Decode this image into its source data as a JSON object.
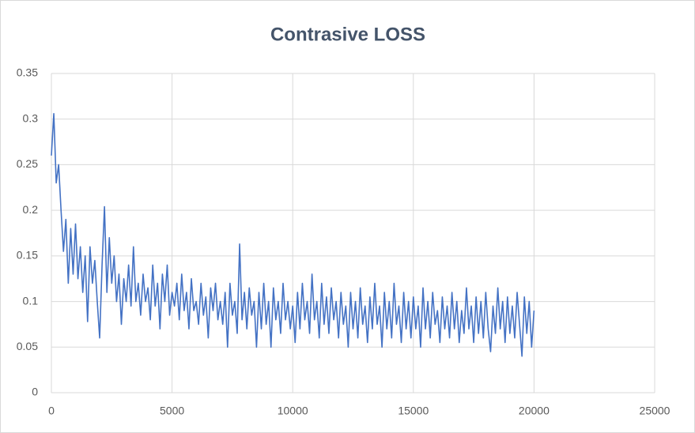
{
  "chart_data": {
    "type": "line",
    "title": "Contrasive LOSS",
    "x": [
      0,
      100,
      200,
      300,
      400,
      500,
      600,
      700,
      800,
      900,
      1000,
      1100,
      1200,
      1300,
      1400,
      1500,
      1600,
      1700,
      1800,
      1900,
      2000,
      2100,
      2200,
      2300,
      2400,
      2500,
      2600,
      2700,
      2800,
      2900,
      3000,
      3100,
      3200,
      3300,
      3400,
      3500,
      3600,
      3700,
      3800,
      3900,
      4000,
      4100,
      4200,
      4300,
      4400,
      4500,
      4600,
      4700,
      4800,
      4900,
      5000,
      5100,
      5200,
      5300,
      5400,
      5500,
      5600,
      5700,
      5800,
      5900,
      6000,
      6100,
      6200,
      6300,
      6400,
      6500,
      6600,
      6700,
      6800,
      6900,
      7000,
      7100,
      7200,
      7300,
      7400,
      7500,
      7600,
      7700,
      7800,
      7900,
      8000,
      8100,
      8200,
      8300,
      8400,
      8500,
      8600,
      8700,
      8800,
      8900,
      9000,
      9100,
      9200,
      9300,
      9400,
      9500,
      9600,
      9700,
      9800,
      9900,
      10000,
      10100,
      10200,
      10300,
      10400,
      10500,
      10600,
      10700,
      10800,
      10900,
      11000,
      11100,
      11200,
      11300,
      11400,
      11500,
      11600,
      11700,
      11800,
      11900,
      12000,
      12100,
      12200,
      12300,
      12400,
      12500,
      12600,
      12700,
      12800,
      12900,
      13000,
      13100,
      13200,
      13300,
      13400,
      13500,
      13600,
      13700,
      13800,
      13900,
      14000,
      14100,
      14200,
      14300,
      14400,
      14500,
      14600,
      14700,
      14800,
      14900,
      15000,
      15100,
      15200,
      15300,
      15400,
      15500,
      15600,
      15700,
      15800,
      15900,
      16000,
      16100,
      16200,
      16300,
      16400,
      16500,
      16600,
      16700,
      16800,
      16900,
      17000,
      17100,
      17200,
      17300,
      17400,
      17500,
      17600,
      17700,
      17800,
      17900,
      18000,
      18100,
      18200,
      18300,
      18400,
      18500,
      18600,
      18700,
      18800,
      18900,
      19000,
      19100,
      19200,
      19300,
      19400,
      19500,
      19600,
      19700,
      19800,
      19900,
      20000
    ],
    "series": [
      {
        "color": "#4472c4",
        "values": [
          0.26,
          0.306,
          0.23,
          0.25,
          0.2,
          0.155,
          0.19,
          0.12,
          0.18,
          0.13,
          0.185,
          0.125,
          0.16,
          0.11,
          0.15,
          0.078,
          0.16,
          0.12,
          0.145,
          0.1,
          0.06,
          0.14,
          0.204,
          0.11,
          0.17,
          0.12,
          0.15,
          0.1,
          0.13,
          0.075,
          0.125,
          0.1,
          0.14,
          0.095,
          0.16,
          0.1,
          0.12,
          0.085,
          0.13,
          0.1,
          0.115,
          0.08,
          0.14,
          0.095,
          0.12,
          0.07,
          0.13,
          0.1,
          0.14,
          0.085,
          0.11,
          0.095,
          0.12,
          0.08,
          0.13,
          0.09,
          0.11,
          0.07,
          0.125,
          0.09,
          0.1,
          0.075,
          0.12,
          0.085,
          0.105,
          0.06,
          0.115,
          0.09,
          0.12,
          0.08,
          0.1,
          0.075,
          0.11,
          0.05,
          0.12,
          0.085,
          0.1,
          0.065,
          0.163,
          0.08,
          0.11,
          0.07,
          0.115,
          0.085,
          0.1,
          0.05,
          0.11,
          0.07,
          0.12,
          0.075,
          0.1,
          0.05,
          0.115,
          0.08,
          0.1,
          0.065,
          0.12,
          0.08,
          0.1,
          0.07,
          0.095,
          0.055,
          0.11,
          0.07,
          0.12,
          0.08,
          0.1,
          0.065,
          0.13,
          0.08,
          0.1,
          0.06,
          0.12,
          0.075,
          0.105,
          0.065,
          0.115,
          0.08,
          0.1,
          0.06,
          0.11,
          0.075,
          0.095,
          0.05,
          0.11,
          0.07,
          0.1,
          0.06,
          0.115,
          0.075,
          0.095,
          0.055,
          0.105,
          0.07,
          0.12,
          0.075,
          0.095,
          0.05,
          0.11,
          0.07,
          0.1,
          0.06,
          0.12,
          0.075,
          0.095,
          0.055,
          0.11,
          0.07,
          0.1,
          0.06,
          0.105,
          0.07,
          0.095,
          0.05,
          0.115,
          0.07,
          0.1,
          0.06,
          0.11,
          0.075,
          0.09,
          0.055,
          0.105,
          0.07,
          0.095,
          0.06,
          0.11,
          0.07,
          0.1,
          0.055,
          0.09,
          0.065,
          0.115,
          0.07,
          0.095,
          0.055,
          0.105,
          0.065,
          0.1,
          0.06,
          0.11,
          0.07,
          0.045,
          0.095,
          0.065,
          0.115,
          0.07,
          0.1,
          0.055,
          0.105,
          0.065,
          0.095,
          0.06,
          0.11,
          0.075,
          0.04,
          0.105,
          0.065,
          0.1,
          0.05,
          0.09
        ]
      }
    ],
    "xlim": [
      0,
      25000
    ],
    "xticks": [
      0,
      5000,
      10000,
      15000,
      20000,
      25000
    ],
    "ylim": [
      0,
      0.35
    ],
    "yticks": [
      0,
      0.05,
      0.1,
      0.15,
      0.2,
      0.25,
      0.3,
      0.35
    ],
    "grid": true
  }
}
